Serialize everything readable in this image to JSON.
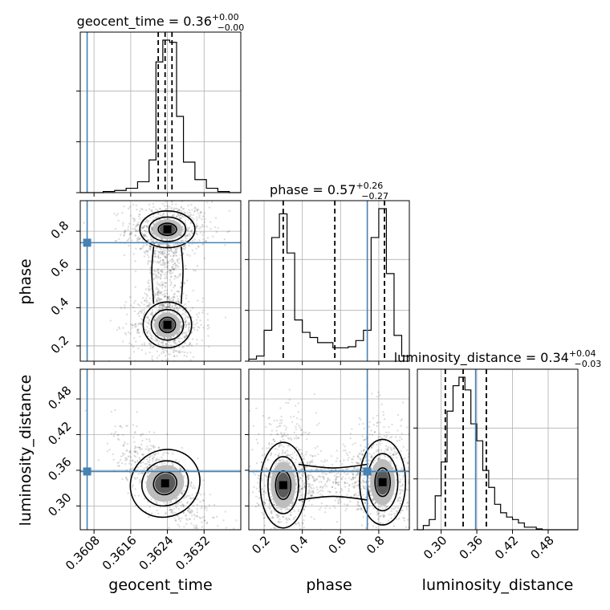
{
  "chart_data": {
    "type": "corner",
    "parameters": [
      {
        "name": "geocent_time",
        "label": "geocent_time",
        "range": [
          0.3605,
          0.364
        ],
        "ticks": [
          "0.3608",
          "0.3616",
          "0.3624",
          "0.3632"
        ],
        "tick_values": [
          0.3608,
          0.3616,
          0.3624,
          0.3632
        ],
        "truth": 0.36065,
        "median": 0.36235,
        "quantiles": [
          0.3622,
          0.36235,
          0.3625
        ],
        "title": {
          "main": "geocent_time = 0.36",
          "plus": "+0.00",
          "minus": "−0.00"
        },
        "hist": {
          "edges": [
            0.3605,
            0.36075,
            0.361,
            0.36125,
            0.3615,
            0.36175,
            0.362,
            0.36215,
            0.3623,
            0.36245,
            0.3626,
            0.36275,
            0.363,
            0.36325,
            0.3635,
            0.36375,
            0.364
          ],
          "counts": [
            0,
            0,
            1,
            2,
            4,
            10,
            30,
            120,
            140,
            138,
            70,
            28,
            12,
            4,
            1,
            0
          ]
        }
      },
      {
        "name": "phase",
        "label": "phase",
        "range": [
          0.12,
          0.96
        ],
        "ticks": [
          "0.2",
          "0.4",
          "0.6",
          "0.8"
        ],
        "tick_values": [
          0.2,
          0.4,
          0.6,
          0.8
        ],
        "truth": 0.74,
        "median": 0.57,
        "quantiles": [
          0.3,
          0.57,
          0.83
        ],
        "title": {
          "main": "phase = 0.57",
          "plus": "+0.26",
          "minus": "−0.27"
        },
        "hist": {
          "edges": [
            0.12,
            0.16,
            0.2,
            0.24,
            0.28,
            0.32,
            0.36,
            0.4,
            0.44,
            0.48,
            0.52,
            0.56,
            0.6,
            0.64,
            0.68,
            0.72,
            0.76,
            0.8,
            0.84,
            0.88,
            0.92,
            0.96
          ],
          "counts": [
            2,
            5,
            30,
            120,
            143,
            105,
            40,
            28,
            23,
            18,
            18,
            13,
            13,
            14,
            20,
            30,
            120,
            148,
            85,
            25,
            5
          ]
        }
      },
      {
        "name": "luminosity_distance",
        "label": "luminosity_distance",
        "range": [
          0.26,
          0.53
        ],
        "ticks": [
          "0.30",
          "0.36",
          "0.42",
          "0.48"
        ],
        "tick_values": [
          0.3,
          0.36,
          0.42,
          0.48
        ],
        "truth": 0.358,
        "median": 0.337,
        "quantiles": [
          0.307,
          0.337,
          0.376
        ],
        "title": {
          "main": "luminosity_distance = 0.34",
          "plus": "+0.04",
          "minus": "−0.03"
        },
        "hist": {
          "edges": [
            0.26,
            0.27,
            0.28,
            0.29,
            0.3,
            0.31,
            0.32,
            0.33,
            0.34,
            0.35,
            0.36,
            0.37,
            0.38,
            0.39,
            0.4,
            0.41,
            0.42,
            0.43,
            0.44,
            0.45,
            0.46,
            0.47,
            0.48,
            0.49,
            0.5,
            0.51,
            0.52,
            0.53
          ],
          "counts": [
            0,
            5,
            12,
            40,
            80,
            140,
            170,
            180,
            165,
            125,
            105,
            70,
            50,
            30,
            20,
            15,
            12,
            8,
            3,
            3,
            1,
            0,
            0,
            0,
            0,
            0,
            0
          ]
        }
      }
    ],
    "pairs": [
      {
        "x": "geocent_time",
        "y": "phase",
        "modes": [
          {
            "center": [
              0.3624,
              0.81
            ],
            "spread": [
              0.00025,
              0.04
            ]
          },
          {
            "center": [
              0.3624,
              0.31
            ],
            "spread": [
              0.00022,
              0.05
            ]
          }
        ],
        "bridge": [
          [
            0.3623,
            0.7
          ],
          [
            0.3624,
            0.6
          ],
          [
            0.3623,
            0.45
          ]
        ]
      },
      {
        "x": "geocent_time",
        "y": "luminosity_distance",
        "modes": [
          {
            "center": [
              0.36235,
              0.338
            ],
            "spread": [
              0.0003,
              0.025
            ]
          }
        ],
        "correlation": "negative"
      },
      {
        "x": "phase",
        "y": "luminosity_distance",
        "modes": [
          {
            "center": [
              0.3,
              0.335
            ],
            "spread": [
              0.05,
              0.03
            ]
          },
          {
            "center": [
              0.82,
              0.34
            ],
            "spread": [
              0.05,
              0.03
            ]
          }
        ]
      }
    ],
    "grid": true,
    "truth_color": "#4682b4",
    "contour_color": "#000000"
  }
}
